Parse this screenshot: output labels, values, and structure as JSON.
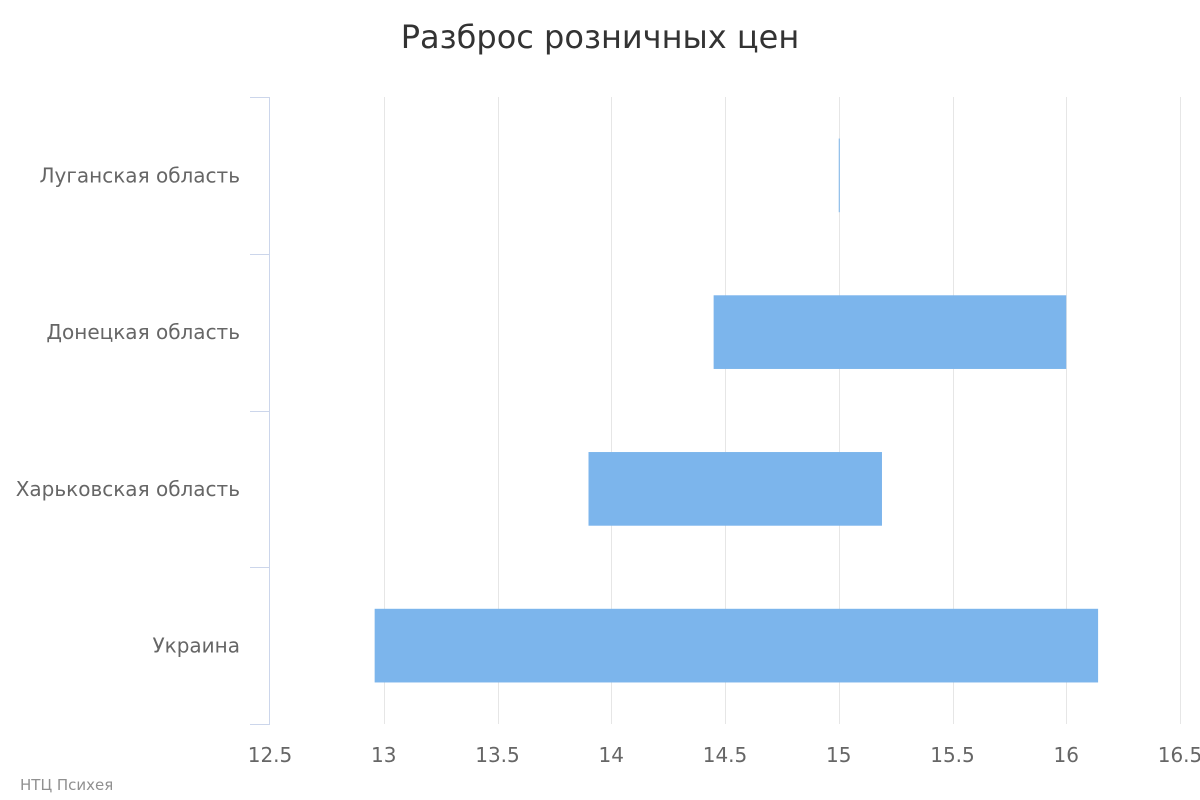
{
  "chart_data": {
    "type": "bar",
    "orientation": "horizontal",
    "title": "Разброс розничных цен",
    "categories": [
      "Луганская область",
      "Донецкая область",
      "Харьковская область",
      "Украина"
    ],
    "series": [
      {
        "ranges": [
          [
            15.0,
            15.0
          ],
          [
            14.45,
            16.0
          ],
          [
            13.9,
            15.19
          ],
          [
            12.96,
            16.14
          ]
        ]
      }
    ],
    "xlim": [
      12.5,
      16.5
    ],
    "xticks": [
      "12.5",
      "13",
      "13.5",
      "14",
      "14.5",
      "15",
      "15.5",
      "16",
      "16.5"
    ],
    "xtick_values": [
      12.5,
      13,
      13.5,
      14,
      14.5,
      15,
      15.5,
      16,
      16.5
    ],
    "grid": true,
    "colors": {
      "bar": "#7cb5ec",
      "grid": "#e6e6e6",
      "axis": "#ccd6eb"
    }
  },
  "credits": "НТЦ Психея"
}
